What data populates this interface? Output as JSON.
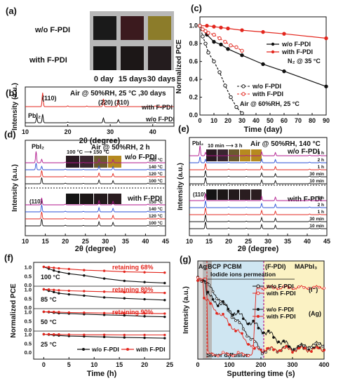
{
  "colors": {
    "black": "#111111",
    "red": "#e3261d",
    "magenta": "#b0178c",
    "blue_shade": "#cfe6f2",
    "yellow_shade": "#fbf2c4",
    "gray_shade": "#b9b9b9"
  },
  "chart_data": [
    {
      "id": "a",
      "type": "photo_grid",
      "label": "(a)",
      "rows": [
        "w/o F-PDI",
        "with F-PDI"
      ],
      "columns": [
        "0 day",
        "15 days",
        "30 days"
      ],
      "swatches": [
        [
          "#1a1a1a",
          "#3b1a1e",
          "#8c7c2a"
        ],
        [
          "#161616",
          "#1c1717",
          "#241c1e"
        ]
      ]
    },
    {
      "id": "b",
      "type": "line",
      "label": "(b)",
      "annotation": "Air @ 50%RH, 25 °C ,30 days",
      "xlabel": "2θ (degree)",
      "ylabel": "Intensity (a.u.)",
      "xlim": [
        10,
        45
      ],
      "xticks": [
        10,
        20,
        30,
        40
      ],
      "peak_labels": [
        "(110)",
        "(220)",
        "(310)",
        "PbI₂"
      ],
      "series": [
        {
          "name": "with F-PDI",
          "color": "red",
          "offset": 1,
          "peaks": [
            [
              14.1,
              0.9
            ],
            [
              28.4,
              0.5
            ],
            [
              31.9,
              0.45
            ],
            [
              20,
              0.05
            ],
            [
              24.5,
              0.04
            ],
            [
              40.6,
              0.05
            ],
            [
              43.2,
              0.04
            ]
          ]
        },
        {
          "name": "w/o F-PDI",
          "color": "black",
          "offset": 0,
          "peaks": [
            [
              12.7,
              0.35
            ],
            [
              14.1,
              0.55
            ],
            [
              28.4,
              0.3
            ],
            [
              31.9,
              0.2
            ],
            [
              20,
              0.04
            ],
            [
              40.6,
              0.03
            ]
          ]
        }
      ]
    },
    {
      "id": "c",
      "type": "line",
      "label": "(c)",
      "xlabel": "Time (day)",
      "ylabel": "Normalized PCE",
      "xlim": [
        0,
        90
      ],
      "ylim": [
        0,
        1.1
      ],
      "xticks": [
        0,
        10,
        20,
        30,
        40,
        50,
        60,
        70,
        80,
        90
      ],
      "yticks": [
        0,
        0.2,
        0.4,
        0.6,
        0.8,
        1.0
      ],
      "groups": [
        {
          "condition": "N₂ @ 35 °C",
          "series": [
            {
              "name": "w/o F-PDI",
              "color": "black",
              "x": [
                0,
                5,
                10,
                15,
                20,
                30,
                45,
                60,
                90
              ],
              "y": [
                1.0,
                0.9,
                0.82,
                0.79,
                0.74,
                0.67,
                0.57,
                0.49,
                0.32
              ]
            },
            {
              "name": "with F-PDI",
              "color": "red",
              "x": [
                0,
                5,
                10,
                15,
                20,
                30,
                45,
                60,
                90
              ],
              "y": [
                1.0,
                1.0,
                0.99,
                0.98,
                0.97,
                0.95,
                0.93,
                0.91,
                0.86
              ]
            }
          ]
        },
        {
          "condition": "Air @ 60%RH, 25 °C",
          "series": [
            {
              "name": "w/o F-PDI",
              "color": "black",
              "x": [
                0,
                2,
                4,
                6,
                10,
                14,
                18,
                22,
                26,
                30
              ],
              "y": [
                1.0,
                0.88,
                0.8,
                0.7,
                0.6,
                0.48,
                0.33,
                0.2,
                0.09,
                0.02
              ]
            },
            {
              "name": "with F-PDI",
              "color": "red",
              "x": [
                0,
                2,
                4,
                6,
                10,
                14,
                18,
                22,
                26,
                30
              ],
              "y": [
                1.0,
                0.96,
                0.94,
                0.92,
                0.9,
                0.86,
                0.82,
                0.78,
                0.76,
                0.72
              ]
            }
          ]
        }
      ]
    },
    {
      "id": "d",
      "type": "line",
      "label": "(d)",
      "annotation": "Air @ 50%RH, 2 h",
      "inset_label": "100 °C ⟶ 150 °C",
      "xlabel": "2θ (degree)",
      "ylabel": "Intensity (a.u.)",
      "xlim": [
        10,
        45
      ],
      "xticks": [
        10,
        15,
        20,
        25,
        30,
        35,
        40,
        45
      ],
      "peak_labels": [
        "PbI₂",
        "(110)"
      ],
      "groups": [
        {
          "name": "w/o F-PDI",
          "traces": [
            {
              "label": "150 °C",
              "color": "magenta"
            },
            {
              "label": "140 °C",
              "color": "blue"
            },
            {
              "label": "120 °C",
              "color": "red"
            },
            {
              "label": "100 °C",
              "color": "black"
            }
          ]
        },
        {
          "name": "with F-PDI",
          "traces": [
            {
              "label": "150 °C",
              "color": "magenta"
            },
            {
              "label": "140 °C",
              "color": "blue"
            },
            {
              "label": "120 °C",
              "color": "red"
            },
            {
              "label": "100 °C",
              "color": "black"
            }
          ]
        }
      ]
    },
    {
      "id": "e",
      "type": "line",
      "label": "(e)",
      "annotation": "Air @ 50%RH, 140 °C",
      "inset_label": "10 min ⟶ 3 h",
      "xlabel": "2θ (degree)",
      "ylabel": "Intensity (a.u.)",
      "xlim": [
        10,
        45
      ],
      "xticks": [
        10,
        15,
        20,
        25,
        30,
        35,
        40,
        45
      ],
      "peak_labels": [
        "PbI₂",
        "(110)"
      ],
      "groups": [
        {
          "name": "w/o F-PDI",
          "traces": [
            {
              "label": "3 h",
              "color": "magenta"
            },
            {
              "label": "2 h",
              "color": "blue"
            },
            {
              "label": "1 h",
              "color": "red"
            },
            {
              "label": "30 min",
              "color": "black"
            },
            {
              "label": "10 min",
              "color": "black"
            }
          ]
        },
        {
          "name": "with F-PDI",
          "traces": [
            {
              "label": "3 h",
              "color": "magenta"
            },
            {
              "label": "2 h",
              "color": "blue"
            },
            {
              "label": "1 h",
              "color": "red"
            },
            {
              "label": "30 min",
              "color": "black"
            },
            {
              "label": "10 min",
              "color": "black"
            }
          ]
        }
      ]
    },
    {
      "id": "f",
      "type": "line",
      "label": "(f)",
      "xlabel": "Time (h)",
      "ylabel": "Normalized PCE",
      "xlim": [
        -2,
        25
      ],
      "xticks": [
        0,
        5,
        10,
        15,
        20,
        25
      ],
      "yticks_labels": [
        "0.0",
        "0.5",
        "1.0"
      ],
      "legend": [
        "w/o F-PDI",
        "with F-PDI"
      ],
      "panels": [
        {
          "temp": "100 °C",
          "retaining": "retaining  68%",
          "wo": [
            1.0,
            0.9,
            0.8,
            0.72,
            0.62,
            0.52,
            0.35,
            0.22,
            0.15,
            0.1
          ],
          "with": [
            1.0,
            0.98,
            0.95,
            0.92,
            0.88,
            0.82,
            0.78,
            0.73,
            0.7,
            0.68
          ]
        },
        {
          "temp": "85 °C",
          "retaining": "retaining  80%",
          "wo": [
            1.0,
            0.92,
            0.85,
            0.78,
            0.72,
            0.65,
            0.55,
            0.5,
            0.45,
            0.4
          ],
          "with": [
            1.0,
            0.99,
            0.97,
            0.95,
            0.92,
            0.9,
            0.87,
            0.84,
            0.82,
            0.8
          ]
        },
        {
          "temp": "50 °C",
          "retaining": "retaining  90%",
          "wo": [
            1.0,
            0.98,
            0.95,
            0.92,
            0.9,
            0.87,
            0.83,
            0.8,
            0.75,
            0.72
          ],
          "with": [
            1.0,
            1.0,
            0.99,
            0.98,
            0.96,
            0.95,
            0.93,
            0.92,
            0.91,
            0.9
          ]
        },
        {
          "temp": "25 °C",
          "retaining": "",
          "wo": [
            1.0,
            0.98,
            0.95,
            0.93,
            0.9,
            0.88,
            0.85,
            0.82,
            0.8,
            0.78
          ],
          "with": [
            1.0,
            1.0,
            0.99,
            0.99,
            0.98,
            0.97,
            0.97,
            0.96,
            0.96,
            0.96
          ]
        }
      ],
      "x": [
        0,
        1,
        2,
        3,
        5,
        8,
        12,
        16,
        20,
        24
      ]
    },
    {
      "id": "g",
      "type": "line",
      "label": "(g)",
      "xlabel": "Sputtering time (s)",
      "ylabel": "Intensity (a.u.)",
      "xlim": [
        0,
        400
      ],
      "xticks": [
        0,
        100,
        200,
        300,
        400
      ],
      "layers": [
        "Ag",
        "BCP",
        "PCBM",
        "(F-PDI)",
        "MAPbI₃"
      ],
      "annotations": [
        "Iodide ions permeation",
        "Silver diffusion"
      ],
      "legend": [
        {
          "name": "w/o F-PDI",
          "element": "(I⁻)",
          "color": "black"
        },
        {
          "name": "with F-PDI",
          "element": "(I⁻)",
          "color": "red"
        },
        {
          "name": "w/o F-PDI",
          "element": "(Ag)",
          "color": "black"
        },
        {
          "name": "with F-PDI",
          "element": "(Ag)",
          "color": "red"
        }
      ],
      "element_labels": [
        "(I⁻)",
        "(Ag)"
      ]
    }
  ]
}
